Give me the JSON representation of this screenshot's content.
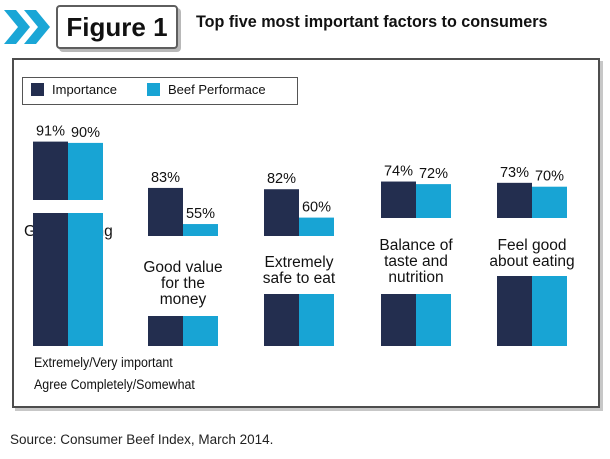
{
  "figure_label": "Figure 1",
  "title": "Top five most important factors to consumers",
  "source": "Source: Consumer Beef Index, March 2014.",
  "notes": {
    "line1": "Extremely/Very important",
    "line2": "Agree Completely/Somewhat"
  },
  "colors": {
    "importance": "#232e4f",
    "performance": "#18a4d4",
    "chevron": "#1aa6d6"
  },
  "chart_data": {
    "type": "bar",
    "title": "Top five most important factors to consumers",
    "categories": [
      "Great tasting",
      "Good value for the money",
      "Extremely safe to eat",
      "Balance of taste and nutrition",
      "Feel good about eating"
    ],
    "category_lines": [
      [
        "Great tasting"
      ],
      [
        "Good value",
        "for the",
        "money"
      ],
      [
        "Extremely",
        "safe to eat"
      ],
      [
        "Balance of",
        "taste and",
        "nutrition"
      ],
      [
        "Feel good",
        "about eating"
      ]
    ],
    "series": [
      {
        "name": "Importance",
        "values": [
          91,
          83,
          82,
          74,
          73
        ],
        "labels": [
          "91%",
          "83%",
          "82%",
          "74%",
          "73%"
        ]
      },
      {
        "name": "Beef Performace",
        "values": [
          90,
          55,
          60,
          72,
          70
        ],
        "labels": [
          "90%",
          "55%",
          "60%",
          "72%",
          "70%"
        ]
      }
    ],
    "unit": "%",
    "legend_position": "top-left",
    "grid": false
  }
}
